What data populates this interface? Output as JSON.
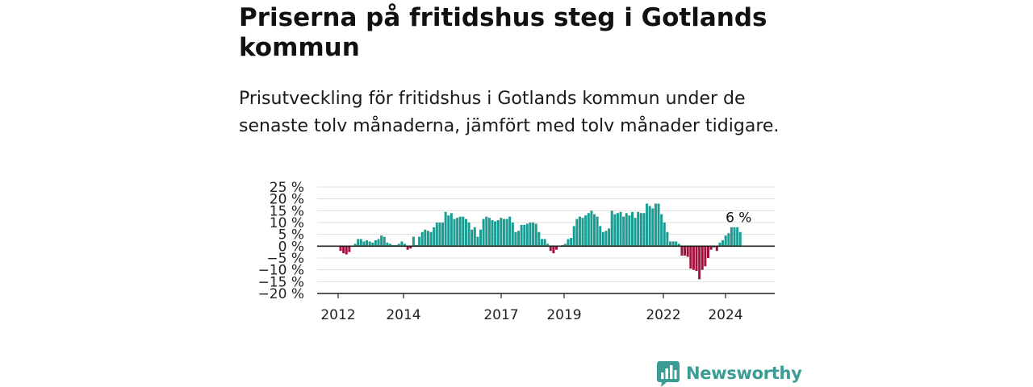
{
  "title": "Priserna på fritidshus steg i Gotlands kommun",
  "subtitle": "Prisutveckling för fritidshus i Gotlands kommun under de senaste tolv månaderna, jämfört med tolv månader tidigare.",
  "brand": {
    "name": "Newsworthy",
    "color": "#3a9c93"
  },
  "chart_data": {
    "type": "bar",
    "ylim": [
      -20,
      25
    ],
    "y_ticks": [
      "25 %",
      "20 %",
      "15 %",
      "10 %",
      "5 %",
      "0 %",
      "−5 %",
      "−10 %",
      "−15 %",
      "−20 %"
    ],
    "x_ticks": [
      "2012",
      "2014",
      "2017",
      "2019",
      "2022",
      "2024"
    ],
    "annotation": "6 %",
    "positive_color": "#1b9c93",
    "negative_color": "#a3113d",
    "grid": true,
    "values": [
      -2,
      -3,
      -3.5,
      -2.5,
      0,
      1,
      3,
      3,
      2,
      2.5,
      2,
      1.5,
      2.5,
      3,
      4.5,
      4,
      1.5,
      1,
      0.5,
      0.5,
      1,
      2,
      1,
      -1.5,
      -1,
      4,
      0.5,
      4,
      6,
      7,
      6.5,
      6,
      8,
      10,
      10,
      10,
      14.5,
      13,
      14,
      11.5,
      12,
      12.5,
      12.5,
      11.5,
      10,
      7,
      8,
      4,
      7,
      11.5,
      12.5,
      12,
      11,
      10.5,
      11,
      12,
      11.5,
      11.5,
      12.5,
      10,
      6,
      6.5,
      9,
      9,
      9.5,
      10,
      10,
      9.5,
      6,
      3,
      3,
      1,
      -2,
      -3,
      -1.5,
      0,
      0.5,
      1,
      3,
      3.5,
      8.5,
      11.5,
      12.5,
      12,
      13,
      14,
      15,
      13.5,
      12.5,
      8.5,
      6,
      6.5,
      7.5,
      15,
      13.5,
      14,
      14.5,
      12.5,
      14,
      13,
      14.5,
      12,
      14.5,
      14,
      14,
      18,
      17,
      16,
      18,
      18,
      13.5,
      10,
      6,
      2,
      2,
      2,
      1,
      -4,
      -4,
      -4.5,
      -9.5,
      -10,
      -10.5,
      -14,
      -10,
      -8.5,
      -5,
      -1.5,
      -0.5,
      -2,
      1.5,
      2.5,
      4.5,
      5.5,
      8,
      8,
      8,
      6
    ]
  }
}
